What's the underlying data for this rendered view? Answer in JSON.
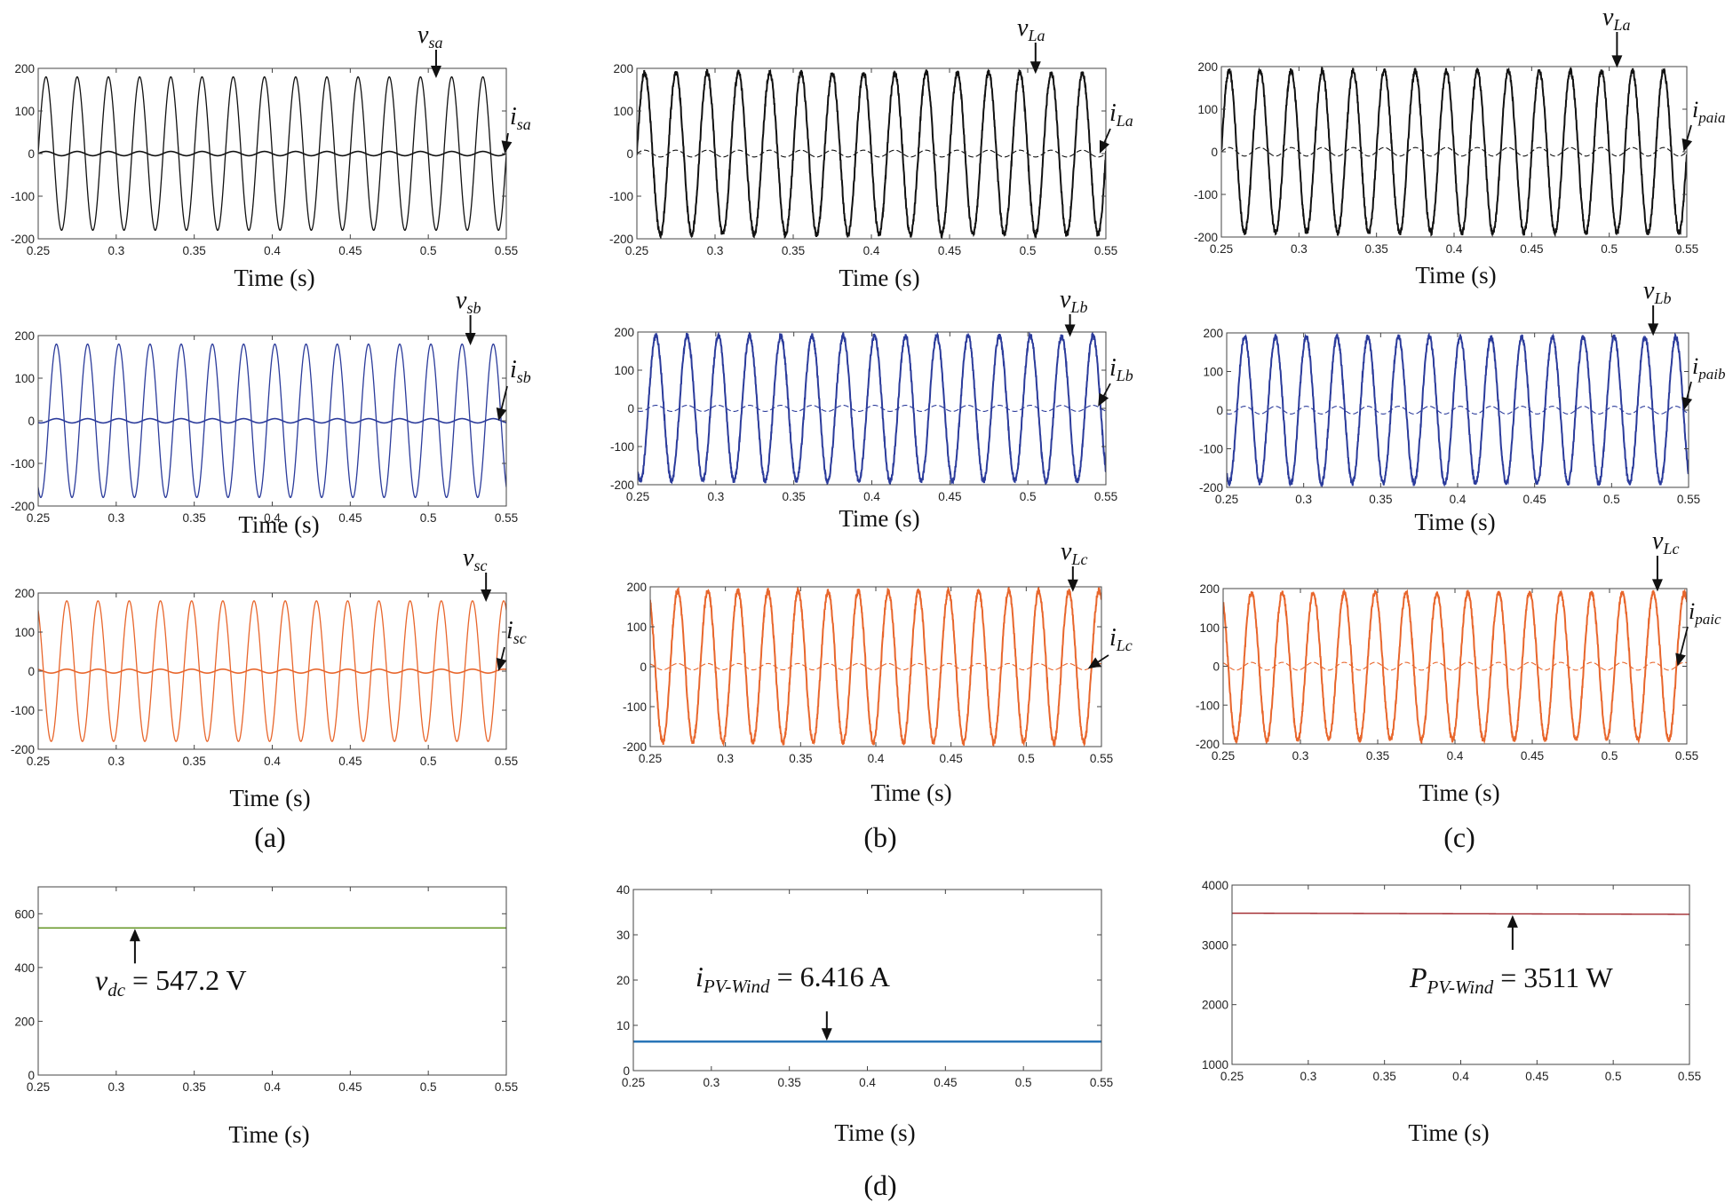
{
  "figure": {
    "panel_labels": [
      "(a)",
      "(b)",
      "(c)",
      "(d)"
    ]
  },
  "chart_data": [
    {
      "id": "a1",
      "panel": "(a)",
      "type": "line",
      "xlabel": "Time (s)",
      "ylabel": "",
      "xlim": [
        0.25,
        0.55
      ],
      "ylim": [
        -200,
        200
      ],
      "xticks": [
        0.25,
        0.3,
        0.35,
        0.4,
        0.45,
        0.5,
        0.55
      ],
      "yticks": [
        -200,
        -100,
        0,
        100,
        200
      ],
      "color": "#111111",
      "series": [
        {
          "name": "vsa",
          "kind": "sine",
          "amplitude": 180,
          "frequency_hz": 50,
          "phase_deg": 0,
          "noise": 0,
          "width": 1.3
        },
        {
          "name": "isa",
          "kind": "sine",
          "amplitude": 5,
          "frequency_hz": 50,
          "phase_deg": 0,
          "noise": 0,
          "width": 1.6
        }
      ],
      "annotations": [
        {
          "main": "v",
          "sub": "sa",
          "target_x": 0.505,
          "target_y": 175,
          "kind": "down"
        },
        {
          "main": "i",
          "sub": "sa",
          "target_x": 0.549,
          "target_y": 0,
          "kind": "diag"
        }
      ]
    },
    {
      "id": "a2",
      "panel": "(a)",
      "type": "line",
      "xlabel": "Time (s)",
      "ylabel": "",
      "xlim": [
        0.25,
        0.55
      ],
      "ylim": [
        -200,
        200
      ],
      "xticks": [
        0.25,
        0.3,
        0.35,
        0.4,
        0.45,
        0.5,
        0.55
      ],
      "yticks": [
        -200,
        -100,
        0,
        100,
        200
      ],
      "color": "#2b3b9b",
      "series": [
        {
          "name": "vsb",
          "kind": "sine",
          "amplitude": 180,
          "frequency_hz": 50,
          "phase_deg": -120,
          "noise": 0,
          "width": 1.3
        },
        {
          "name": "isb",
          "kind": "sine",
          "amplitude": 5,
          "frequency_hz": 50,
          "phase_deg": -120,
          "noise": 0,
          "width": 1.6
        }
      ],
      "annotations": [
        {
          "main": "v",
          "sub": "sb",
          "target_x": 0.527,
          "target_y": 175,
          "kind": "down"
        },
        {
          "main": "i",
          "sub": "sb",
          "target_x": 0.545,
          "target_y": 0,
          "kind": "diag"
        }
      ]
    },
    {
      "id": "a3",
      "panel": "(a)",
      "type": "line",
      "xlabel": "Time (s)",
      "ylabel": "",
      "xlim": [
        0.25,
        0.55
      ],
      "ylim": [
        -200,
        200
      ],
      "xticks": [
        0.25,
        0.3,
        0.35,
        0.4,
        0.45,
        0.5,
        0.55
      ],
      "yticks": [
        -200,
        -100,
        0,
        100,
        200
      ],
      "color": "#e8662c",
      "series": [
        {
          "name": "vsc",
          "kind": "sine",
          "amplitude": 180,
          "frequency_hz": 50,
          "phase_deg": 120,
          "noise": 0,
          "width": 1.3
        },
        {
          "name": "isc",
          "kind": "sine",
          "amplitude": 5,
          "frequency_hz": 50,
          "phase_deg": 120,
          "noise": 0,
          "width": 1.6
        }
      ],
      "annotations": [
        {
          "main": "v",
          "sub": "sc",
          "target_x": 0.537,
          "target_y": 175,
          "kind": "down"
        },
        {
          "main": "i",
          "sub": "sc",
          "target_x": 0.545,
          "target_y": 0,
          "kind": "diag"
        }
      ]
    },
    {
      "id": "b1",
      "panel": "(b)",
      "type": "line",
      "xlabel": "Time (s)",
      "ylabel": "",
      "xlim": [
        0.25,
        0.55
      ],
      "ylim": [
        -200,
        200
      ],
      "xticks": [
        0.25,
        0.3,
        0.35,
        0.4,
        0.45,
        0.5,
        0.55
      ],
      "yticks": [
        -200,
        -100,
        0,
        100,
        200
      ],
      "color": "#111111",
      "series": [
        {
          "name": "vLa",
          "kind": "sine",
          "amplitude": 190,
          "frequency_hz": 50,
          "phase_deg": 0,
          "noise": 7,
          "width": 2.0
        },
        {
          "name": "iLa",
          "kind": "sine",
          "amplitude": 8,
          "frequency_hz": 50,
          "phase_deg": 0,
          "noise": 0,
          "width": 1.1,
          "dashed": true
        }
      ],
      "annotations": [
        {
          "main": "v",
          "sub": "La",
          "target_x": 0.505,
          "target_y": 185,
          "kind": "down"
        },
        {
          "main": "i",
          "sub": "La",
          "target_x": 0.546,
          "target_y": 0,
          "kind": "diag"
        }
      ]
    },
    {
      "id": "b2",
      "panel": "(b)",
      "type": "line",
      "xlabel": "Time (s)",
      "ylabel": "",
      "xlim": [
        0.25,
        0.55
      ],
      "ylim": [
        -200,
        200
      ],
      "xticks": [
        0.25,
        0.3,
        0.35,
        0.4,
        0.45,
        0.5,
        0.55
      ],
      "yticks": [
        -200,
        -100,
        0,
        100,
        200
      ],
      "color": "#2b3b9b",
      "series": [
        {
          "name": "vLb",
          "kind": "sine",
          "amplitude": 190,
          "frequency_hz": 50,
          "phase_deg": -120,
          "noise": 7,
          "width": 2.0
        },
        {
          "name": "iLb",
          "kind": "sine",
          "amplitude": 8,
          "frequency_hz": 50,
          "phase_deg": -120,
          "noise": 0,
          "width": 1.1,
          "dashed": true
        }
      ],
      "annotations": [
        {
          "main": "v",
          "sub": "Lb",
          "target_x": 0.527,
          "target_y": 185,
          "kind": "down"
        },
        {
          "main": "i",
          "sub": "Lb",
          "target_x": 0.545,
          "target_y": 5,
          "kind": "diag"
        }
      ]
    },
    {
      "id": "b3",
      "panel": "(b)",
      "type": "line",
      "xlabel": "Time (s)",
      "ylabel": "",
      "xlim": [
        0.25,
        0.55
      ],
      "ylim": [
        -200,
        200
      ],
      "xticks": [
        0.25,
        0.3,
        0.35,
        0.4,
        0.45,
        0.5,
        0.55
      ],
      "yticks": [
        -200,
        -100,
        0,
        100,
        200
      ],
      "color": "#e8662c",
      "series": [
        {
          "name": "vLc",
          "kind": "sine",
          "amplitude": 190,
          "frequency_hz": 50,
          "phase_deg": 120,
          "noise": 7,
          "width": 2.0
        },
        {
          "name": "iLc",
          "kind": "sine",
          "amplitude": 8,
          "frequency_hz": 50,
          "phase_deg": 120,
          "noise": 0,
          "width": 1.1,
          "dashed": true
        }
      ],
      "annotations": [
        {
          "main": "v",
          "sub": "Lc",
          "target_x": 0.531,
          "target_y": 185,
          "kind": "down"
        },
        {
          "main": "i",
          "sub": "Lc",
          "target_x": 0.541,
          "target_y": -5,
          "kind": "diag"
        }
      ]
    },
    {
      "id": "c1",
      "panel": "(c)",
      "type": "line",
      "xlabel": "Time (s)",
      "ylabel": "",
      "xlim": [
        0.25,
        0.55
      ],
      "ylim": [
        -200,
        200
      ],
      "xticks": [
        0.25,
        0.3,
        0.35,
        0.4,
        0.45,
        0.5,
        0.55
      ],
      "yticks": [
        -200,
        -100,
        0,
        100,
        200
      ],
      "color": "#111111",
      "series": [
        {
          "name": "vLa",
          "kind": "sine",
          "amplitude": 190,
          "frequency_hz": 50,
          "phase_deg": 0,
          "noise": 7,
          "width": 2.0
        },
        {
          "name": "ipaia",
          "kind": "sine",
          "amplitude": 10,
          "frequency_hz": 50,
          "phase_deg": 0,
          "noise": 0,
          "width": 1.1,
          "dashed": true
        }
      ],
      "annotations": [
        {
          "main": "v",
          "sub": "La",
          "target_x": 0.505,
          "target_y": 195,
          "kind": "down"
        },
        {
          "main": "i",
          "sub": "paia",
          "target_x": 0.548,
          "target_y": 0,
          "kind": "diag"
        }
      ]
    },
    {
      "id": "c2",
      "panel": "(c)",
      "type": "line",
      "xlabel": "Time (s)",
      "ylabel": "",
      "xlim": [
        0.25,
        0.55
      ],
      "ylim": [
        -200,
        200
      ],
      "xticks": [
        0.25,
        0.3,
        0.35,
        0.4,
        0.45,
        0.5,
        0.55
      ],
      "yticks": [
        -200,
        -100,
        0,
        100,
        200
      ],
      "color": "#2b3b9b",
      "series": [
        {
          "name": "vLb",
          "kind": "sine",
          "amplitude": 190,
          "frequency_hz": 50,
          "phase_deg": -120,
          "noise": 7,
          "width": 2.0
        },
        {
          "name": "ipaib",
          "kind": "sine",
          "amplitude": 10,
          "frequency_hz": 50,
          "phase_deg": -120,
          "noise": 0,
          "width": 1.1,
          "dashed": true
        }
      ],
      "annotations": [
        {
          "main": "v",
          "sub": "Lb",
          "target_x": 0.527,
          "target_y": 190,
          "kind": "down"
        },
        {
          "main": "i",
          "sub": "paib",
          "target_x": 0.547,
          "target_y": 0,
          "kind": "diag"
        }
      ]
    },
    {
      "id": "c3",
      "panel": "(c)",
      "type": "line",
      "xlabel": "Time (s)",
      "ylabel": "",
      "xlim": [
        0.25,
        0.55
      ],
      "ylim": [
        -200,
        200
      ],
      "xticks": [
        0.25,
        0.3,
        0.35,
        0.4,
        0.45,
        0.5,
        0.55
      ],
      "yticks": [
        -200,
        -100,
        0,
        100,
        200
      ],
      "color": "#e8662c",
      "series": [
        {
          "name": "vLc",
          "kind": "sine",
          "amplitude": 190,
          "frequency_hz": 50,
          "phase_deg": 120,
          "noise": 7,
          "width": 2.0
        },
        {
          "name": "ipaic",
          "kind": "sine",
          "amplitude": 10,
          "frequency_hz": 50,
          "phase_deg": 120,
          "noise": 0,
          "width": 1.1,
          "dashed": true
        }
      ],
      "annotations": [
        {
          "main": "v",
          "sub": "Lc",
          "target_x": 0.531,
          "target_y": 190,
          "kind": "down"
        },
        {
          "main": "i",
          "sub": "paic",
          "target_x": 0.544,
          "target_y": 0,
          "kind": "diag"
        }
      ]
    },
    {
      "id": "d1",
      "panel": "(d)",
      "type": "line",
      "xlabel": "Time (s)",
      "ylabel": "",
      "xlim": [
        0.25,
        0.55
      ],
      "ylim": [
        0,
        700
      ],
      "xticks": [
        0.25,
        0.3,
        0.35,
        0.4,
        0.45,
        0.5,
        0.55
      ],
      "yticks": [
        0,
        200,
        400,
        600
      ],
      "color": "#6a9a2e",
      "series": [
        {
          "name": "vdc",
          "kind": "const",
          "value": 547.2,
          "noise": 0,
          "width": 1.6
        }
      ],
      "annotations": [
        {
          "main": "v",
          "sub": "dc",
          "value": " = 547.2 V",
          "target_x": 0.312,
          "target_y": 547.2,
          "kind": "up"
        }
      ]
    },
    {
      "id": "d2",
      "panel": "(d)",
      "type": "line",
      "xlabel": "Time (s)",
      "ylabel": "",
      "xlim": [
        0.25,
        0.55
      ],
      "ylim": [
        0,
        40
      ],
      "xticks": [
        0.25,
        0.3,
        0.35,
        0.4,
        0.45,
        0.5,
        0.55
      ],
      "yticks": [
        0,
        10,
        20,
        30,
        40
      ],
      "color": "#1f6fb5",
      "series": [
        {
          "name": "iPV-Wind",
          "kind": "const",
          "value": 6.416,
          "noise": 0,
          "width": 2.4
        }
      ],
      "annotations": [
        {
          "main": "i",
          "sub": "PV-Wind",
          "value": " = 6.416 A",
          "target_x": 0.374,
          "target_y": 6.416,
          "kind": "down"
        }
      ]
    },
    {
      "id": "d3",
      "panel": "(d)",
      "type": "line",
      "xlabel": "Time (s)",
      "ylabel": "",
      "xlim": [
        0.25,
        0.55
      ],
      "ylim": [
        1000,
        4000
      ],
      "xticks": [
        0.25,
        0.3,
        0.35,
        0.4,
        0.45,
        0.5,
        0.55
      ],
      "yticks": [
        1000,
        2000,
        3000,
        4000
      ],
      "color": "#a0262b",
      "series": [
        {
          "name": "PPV-Wind",
          "kind": "line2",
          "y0": 3530,
          "y1": 3511,
          "noise": 0,
          "width": 1.4
        }
      ],
      "annotations": [
        {
          "main": "P",
          "sub": "PV-Wind",
          "value": " = 3511 W",
          "target_x": 0.434,
          "target_y": 3511,
          "kind": "up"
        }
      ]
    }
  ]
}
